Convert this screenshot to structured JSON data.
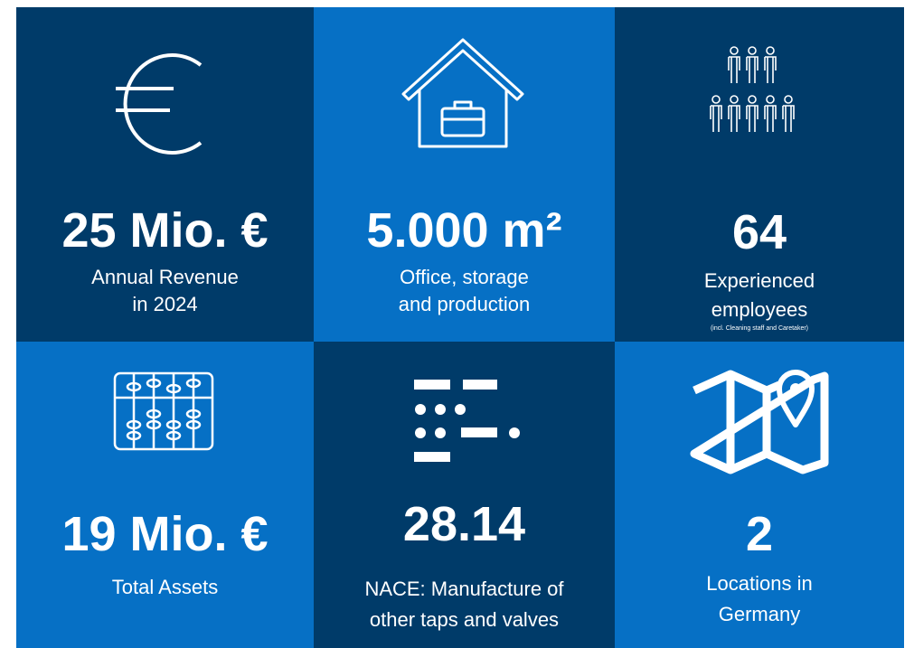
{
  "tiles": [
    {
      "value": "25 Mio. €",
      "label": [
        "Annual Revenue",
        "in 2024"
      ]
    },
    {
      "value": "5.000 m²",
      "label": [
        "Office, storage",
        "and production"
      ]
    },
    {
      "value": "64",
      "label": [
        "Experienced",
        "employees"
      ],
      "note": "(incl. Cleaning staff and Caretaker)"
    },
    {
      "value": "19 Mio. €",
      "label": [
        "Total Assets"
      ]
    },
    {
      "value": "28.14",
      "label": [
        "NACE: Manufacture of",
        "other taps and valves"
      ]
    },
    {
      "value": "2",
      "label": [
        "Locations in",
        "Germany"
      ]
    }
  ]
}
